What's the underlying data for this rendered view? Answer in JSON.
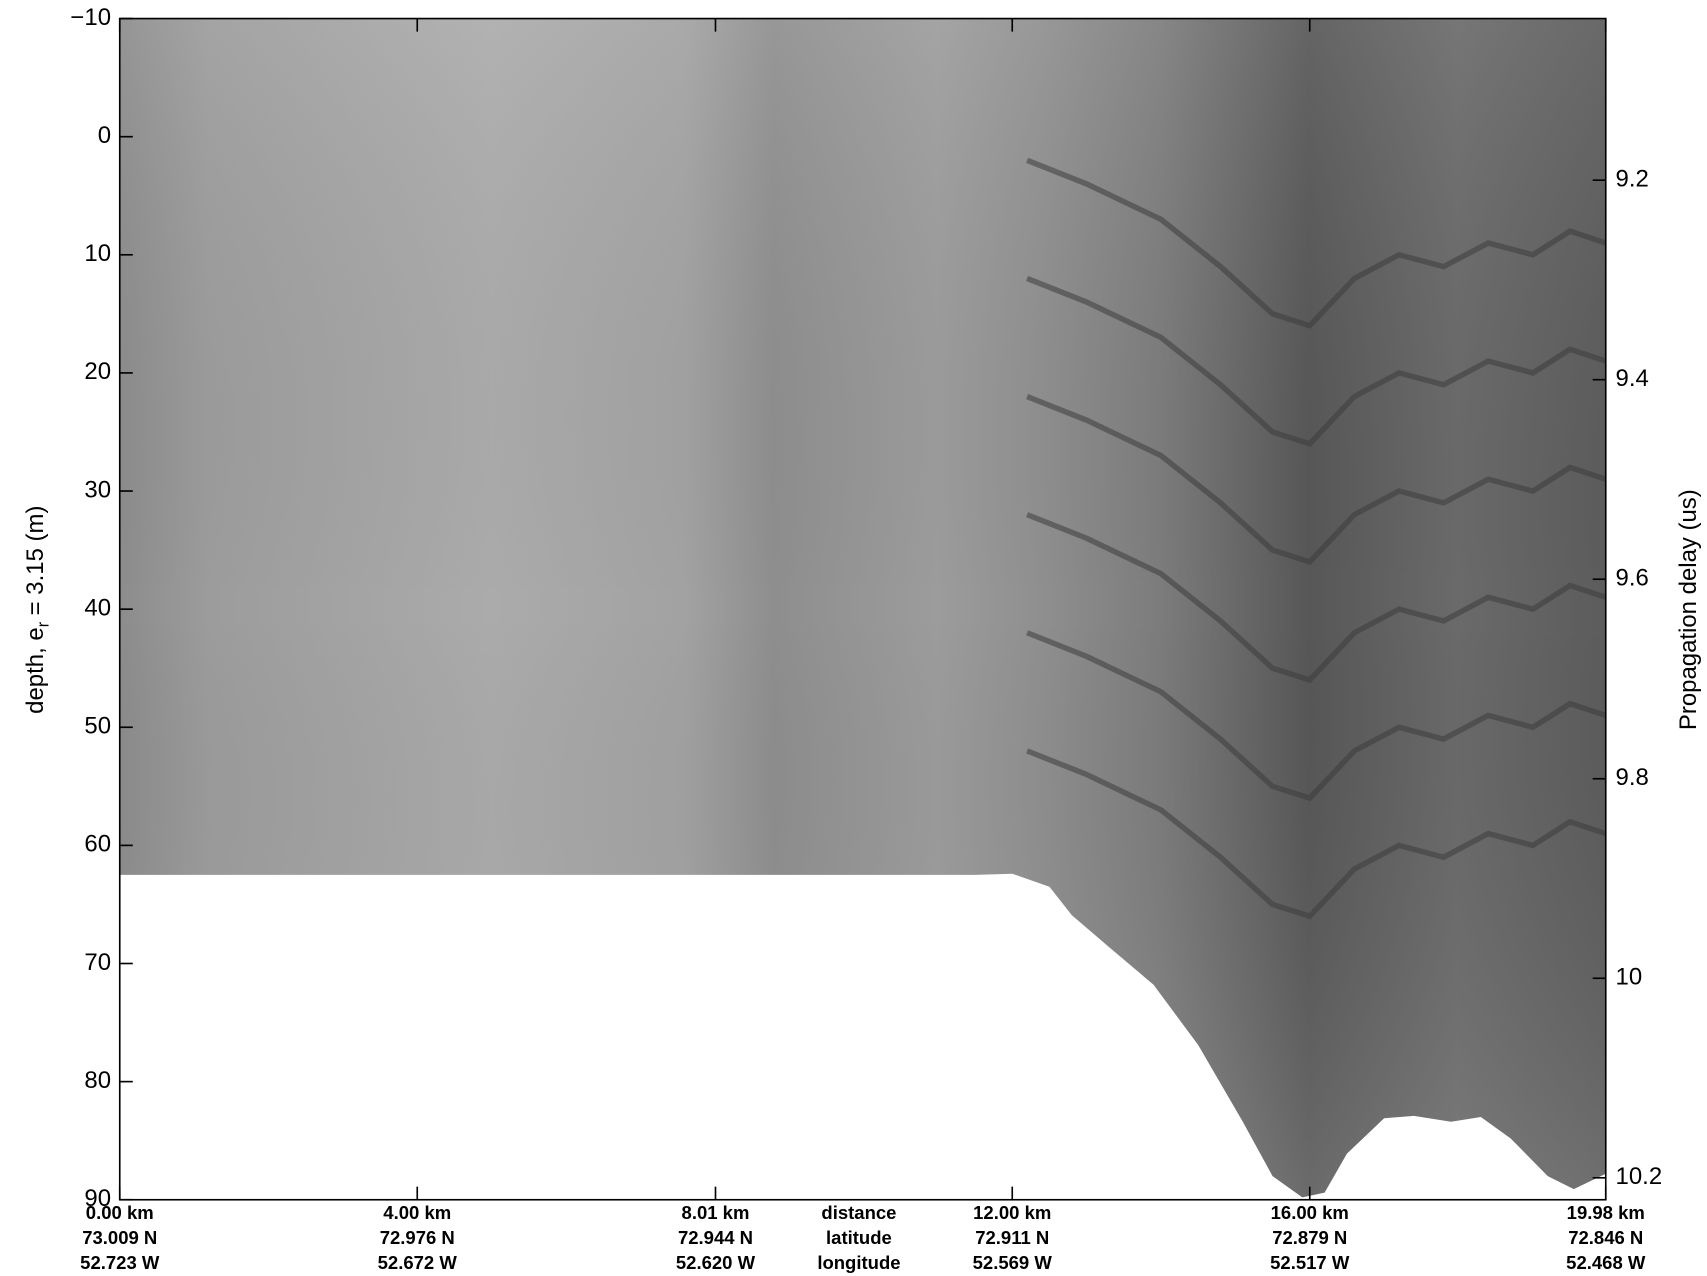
{
  "chart_data": {
    "type": "echogram",
    "xlabel_lines": [
      "distance",
      "latitude",
      "longitude"
    ],
    "ylabel_parts": [
      "depth, e",
      "r",
      "= 3.15 (m)"
    ],
    "y2label": "Propagation delay (us)",
    "xlim": [
      0,
      19.98
    ],
    "xticks": [
      {
        "value": 0,
        "label": "0.00 km"
      },
      {
        "value": 4,
        "label": "4.00 km"
      },
      {
        "value": 8.01,
        "label": "8.01 km"
      },
      {
        "value": 12,
        "label": "12.00 km"
      },
      {
        "value": 16,
        "label": "16.00 km"
      },
      {
        "value": 19.98,
        "label": "19.98 km"
      }
    ],
    "latitude_labels": [
      "73.009 N",
      "72.976 N",
      "72.944 N",
      "72.911 N",
      "72.879 N",
      "72.846 N"
    ],
    "longitude_labels": [
      "52.723 W",
      "52.672 W",
      "52.620 W",
      "52.569 W",
      "52.517 W",
      "52.468 W"
    ],
    "ylim": [
      -10,
      90
    ],
    "yticks": [
      {
        "value": -10,
        "label": "−10"
      },
      0,
      10,
      20,
      30,
      40,
      50,
      60,
      70,
      80,
      90
    ],
    "y2lim": [
      9.038,
      10.222
    ],
    "y2ticks": [
      9.2,
      9.4,
      9.6,
      9.8,
      10,
      10.2
    ],
    "bed": {
      "x": [
        0,
        11.5,
        12,
        12.5,
        12.8,
        13.3,
        13.9,
        14.5,
        15.1,
        15.5,
        15.9,
        16.2,
        16.5,
        17.0,
        17.4,
        17.9,
        18.3,
        18.7,
        19.2,
        19.55,
        19.98
      ],
      "values": [
        62.5,
        62.5,
        62.4,
        63.5,
        65.9,
        68.6,
        71.8,
        76.9,
        83.4,
        88.0,
        89.8,
        89.4,
        86.1,
        83.1,
        82.9,
        83.4,
        83.0,
        84.8,
        88.0,
        89.1,
        87.8
      ]
    },
    "layers_x": [
      12.2,
      13,
      14,
      14.8,
      15.5,
      16,
      16.6,
      17.2,
      17.8,
      18.4,
      19,
      19.5,
      19.98
    ],
    "layers": [
      {
        "color": "#3c3c3c",
        "values": [
          2,
          4,
          7,
          11,
          15,
          16,
          12,
          10,
          11,
          9,
          10,
          8,
          9
        ]
      },
      {
        "color": "#3c3c3c",
        "values": [
          12,
          14,
          17,
          21,
          25,
          26,
          22,
          20,
          21,
          19,
          20,
          18,
          19
        ]
      },
      {
        "color": "#3c3c3c",
        "values": [
          22,
          24,
          27,
          31,
          35,
          36,
          32,
          30,
          31,
          29,
          30,
          28,
          29
        ]
      },
      {
        "color": "#3c3c3c",
        "values": [
          32,
          34,
          37,
          41,
          45,
          46,
          42,
          40,
          41,
          39,
          40,
          38,
          39
        ]
      },
      {
        "color": "#3c3c3c",
        "values": [
          42,
          44,
          47,
          51,
          55,
          56,
          52,
          50,
          51,
          49,
          50,
          48,
          49
        ]
      },
      {
        "color": "#3c3c3c",
        "values": [
          52,
          54,
          57,
          61,
          65,
          66,
          62,
          60,
          61,
          59,
          60,
          58,
          59
        ]
      }
    ]
  }
}
